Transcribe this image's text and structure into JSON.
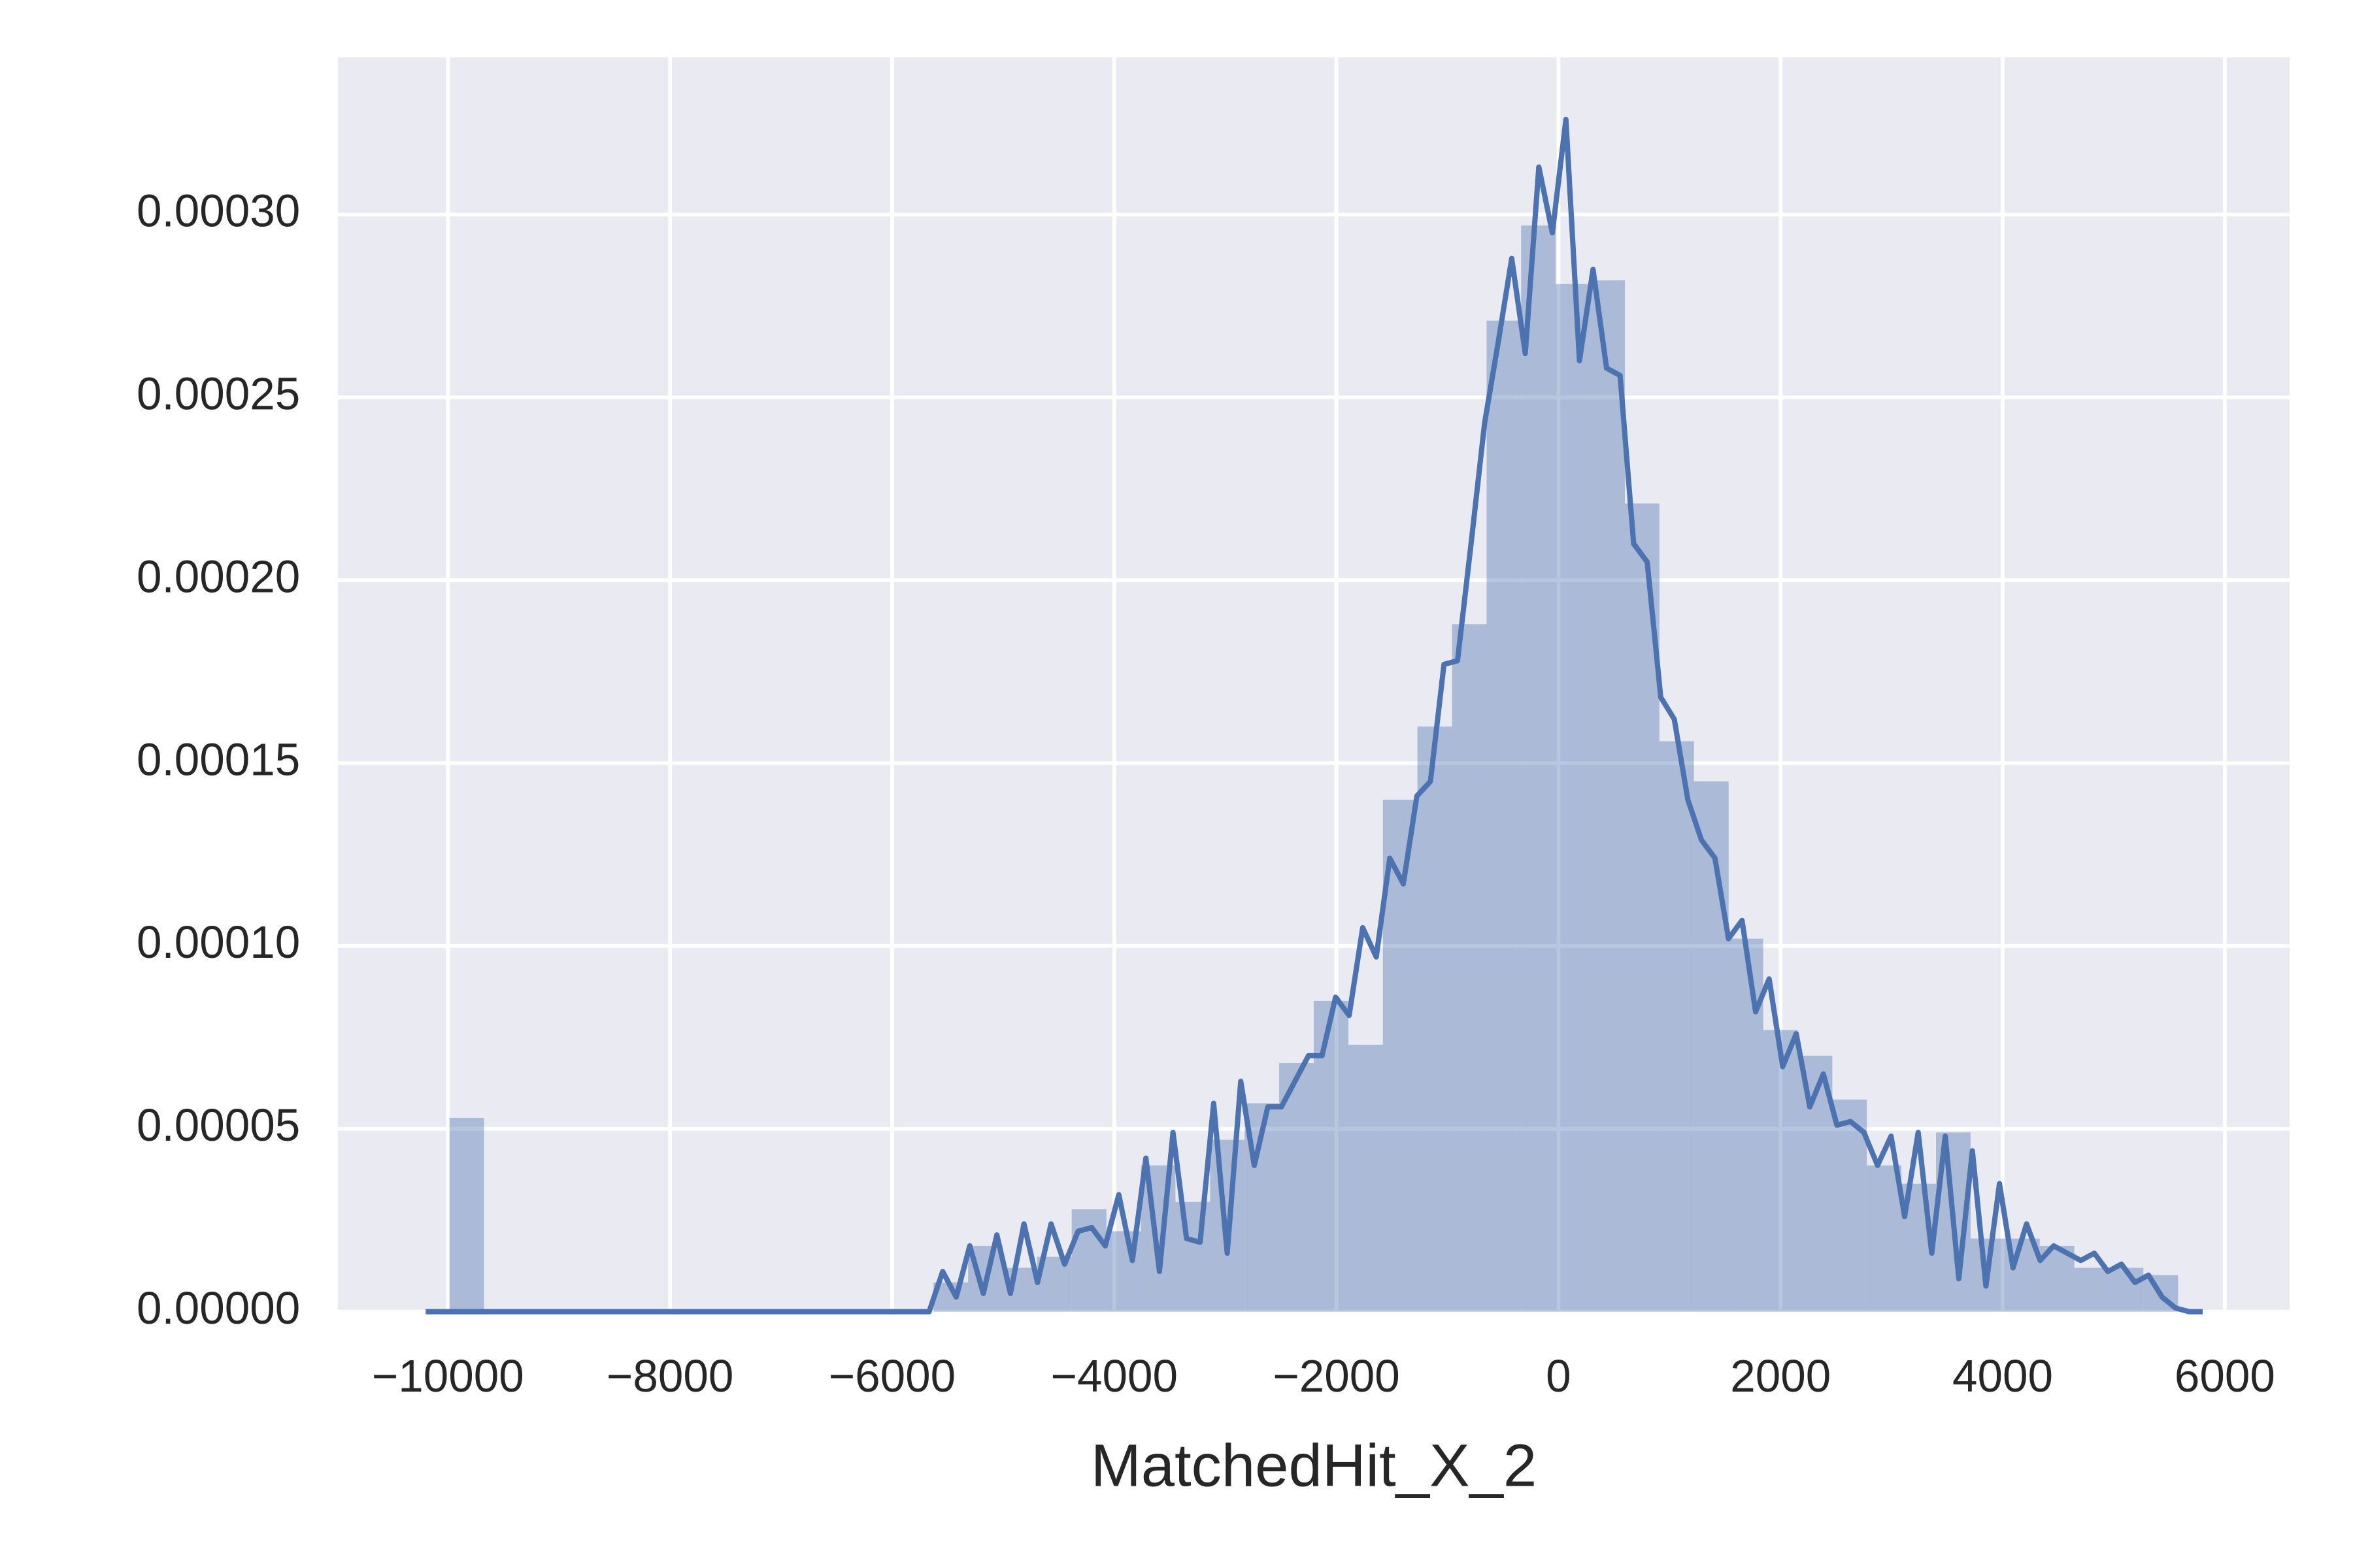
{
  "chart_data": {
    "type": "histogram",
    "x_label": "MatchedHit_X_2",
    "color": "#4c72b0",
    "grid": true,
    "bins": [
      -9986,
      -9675,
      -9363,
      -9052,
      -8741,
      -8430,
      -8118,
      -7807,
      -7496,
      -7184,
      -6873,
      -6562,
      -6250,
      -5939,
      -5628,
      -5316,
      -5005,
      -4694,
      -4383,
      -4071,
      -3760,
      -3449,
      -3137,
      -2826,
      -2515,
      -2204,
      -1892,
      -1581,
      -1270,
      -958,
      -647,
      -336,
      -25,
      287,
      598,
      909,
      1220,
      1532,
      1843,
      2154,
      2466,
      2777,
      3088,
      3400,
      3711,
      4022,
      4333,
      4645,
      4956,
      5267,
      5579
    ],
    "values": [
      5.3e-05,
      0,
      0,
      0,
      0,
      0,
      0,
      0,
      0,
      0,
      0,
      0,
      0,
      0,
      8e-06,
      1.8e-05,
      1.2e-05,
      1.5e-05,
      2.8e-05,
      2.2e-05,
      4e-05,
      3e-05,
      4.7e-05,
      5.7e-05,
      6.8e-05,
      8.5e-05,
      7.3e-05,
      0.00014,
      0.00016,
      0.000188,
      0.000271,
      0.000297,
      0.000281,
      0.000282,
      0.000221,
      0.000156,
      0.000145,
      0.000102,
      7.7e-05,
      7e-05,
      5.8e-05,
      4e-05,
      3.5e-05,
      4.9e-05,
      2e-05,
      2e-05,
      1.8e-05,
      1.2e-05,
      1.2e-05,
      1e-05
    ],
    "kde": {
      "color": "#4c72b0",
      "x": [
        -10200,
        -9000,
        -8000,
        -7000,
        -6000,
        -5667,
        -5545,
        -5423,
        -5301,
        -5179,
        -5057,
        -4935,
        -4813,
        -4691,
        -4569,
        -4447,
        -4325,
        -4203,
        -4081,
        -3959,
        -3837,
        -3715,
        -3593,
        -3471,
        -3349,
        -3227,
        -3105,
        -2983,
        -2861,
        -2739,
        -2617,
        -2495,
        -2373,
        -2251,
        -2129,
        -2007,
        -1885,
        -1763,
        -1641,
        -1519,
        -1397,
        -1275,
        -1153,
        -1031,
        -909,
        -787,
        -665,
        -543,
        -421,
        -299,
        -177,
        -55,
        67,
        189,
        311,
        433,
        555,
        677,
        799,
        921,
        1043,
        1165,
        1287,
        1409,
        1531,
        1653,
        1775,
        1897,
        2019,
        2141,
        2263,
        2385,
        2507,
        2629,
        2751,
        2873,
        2995,
        3117,
        3239,
        3361,
        3483,
        3605,
        3727,
        3849,
        3971,
        4093,
        4215,
        4337,
        4459,
        4581,
        4703,
        4825,
        4947,
        5069,
        5191,
        5313,
        5435,
        5557,
        5679,
        5801
      ],
      "values": [
        0,
        0,
        0,
        0,
        0,
        0,
        1.1e-05,
        4e-06,
        1.8e-05,
        5e-06,
        2.1e-05,
        5e-06,
        2.4e-05,
        8e-06,
        2.4e-05,
        1.3e-05,
        2.2e-05,
        2.3e-05,
        1.8e-05,
        3.2e-05,
        1.4e-05,
        4.2e-05,
        1.1e-05,
        4.9e-05,
        2e-05,
        1.9e-05,
        5.7e-05,
        1.6e-05,
        6.3e-05,
        4e-05,
        5.6e-05,
        5.6e-05,
        6.3e-05,
        7e-05,
        7e-05,
        8.6e-05,
        8.1e-05,
        0.000105,
        9.7e-05,
        0.000124,
        0.000117,
        0.000141,
        0.000145,
        0.000177,
        0.000178,
        0.00021,
        0.000243,
        0.000265,
        0.000288,
        0.000262,
        0.000313,
        0.000295,
        0.000326,
        0.00026,
        0.000285,
        0.000258,
        0.000256,
        0.00021,
        0.000205,
        0.000168,
        0.000162,
        0.00014,
        0.000129,
        0.000124,
        0.000102,
        0.000107,
        8.2e-05,
        9.1e-05,
        6.7e-05,
        7.6e-05,
        5.6e-05,
        6.5e-05,
        5.1e-05,
        5.2e-05,
        4.9e-05,
        4e-05,
        4.8e-05,
        2.6e-05,
        4.9e-05,
        1.6e-05,
        4.8e-05,
        9e-06,
        4.4e-05,
        7e-06,
        3.5e-05,
        1.2e-05,
        2.4e-05,
        1.4e-05,
        1.8e-05,
        1.6e-05,
        1.4e-05,
        1.6e-05,
        1.1e-05,
        1.3e-05,
        8e-06,
        1e-05,
        4e-06,
        1e-06,
        0,
        0
      ]
    },
    "xlim": [
      -10991,
      6584
    ],
    "ylim": [
      0,
      0.000343
    ],
    "xticks": [
      {
        "value": -10000,
        "label": "−10000"
      },
      {
        "value": -8000,
        "label": "−8000"
      },
      {
        "value": -6000,
        "label": "−6000"
      },
      {
        "value": -4000,
        "label": "−4000"
      },
      {
        "value": -2000,
        "label": "−2000"
      },
      0,
      2000,
      4000,
      6000
    ],
    "yticks": [
      {
        "value": 0,
        "label": "0.00000"
      },
      {
        "value": 5e-05,
        "label": "0.00005"
      },
      {
        "value": 0.0001,
        "label": "0.00010"
      },
      {
        "value": 0.00015,
        "label": "0.00015"
      },
      {
        "value": 0.0002,
        "label": "0.00020"
      },
      {
        "value": 0.00025,
        "label": "0.00025"
      },
      {
        "value": 0.0003,
        "label": "0.00030"
      }
    ]
  }
}
